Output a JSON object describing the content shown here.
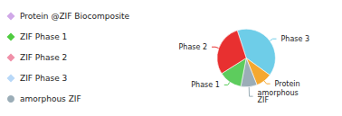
{
  "chart_data": {
    "type": "pie",
    "categories": [
      "Phase 3",
      "Protein",
      "amorphous\nZIF",
      "Phase 1",
      "Phase 2"
    ],
    "values": [
      40,
      9,
      9,
      13,
      29
    ],
    "colors": [
      "#6ecde8",
      "#f5a830",
      "#9badb7",
      "#5dcc5d",
      "#e83030"
    ],
    "annotations": [
      {
        "text": "Protein @ZIF Biocomposite",
        "marker": "diamond",
        "color": "#d0a8e8"
      },
      {
        "text": "ZIF Phase 1",
        "marker": "diamond",
        "color": "#50cc40"
      },
      {
        "text": "ZIF Phase 2",
        "marker": "diamond",
        "color": "#f090a8"
      },
      {
        "text": "ZIF Phase 3",
        "marker": "diamond",
        "color": "#b8d8f8"
      },
      {
        "text": "amorphous ZIF",
        "marker": "circle",
        "color": "#9badb7"
      }
    ]
  }
}
